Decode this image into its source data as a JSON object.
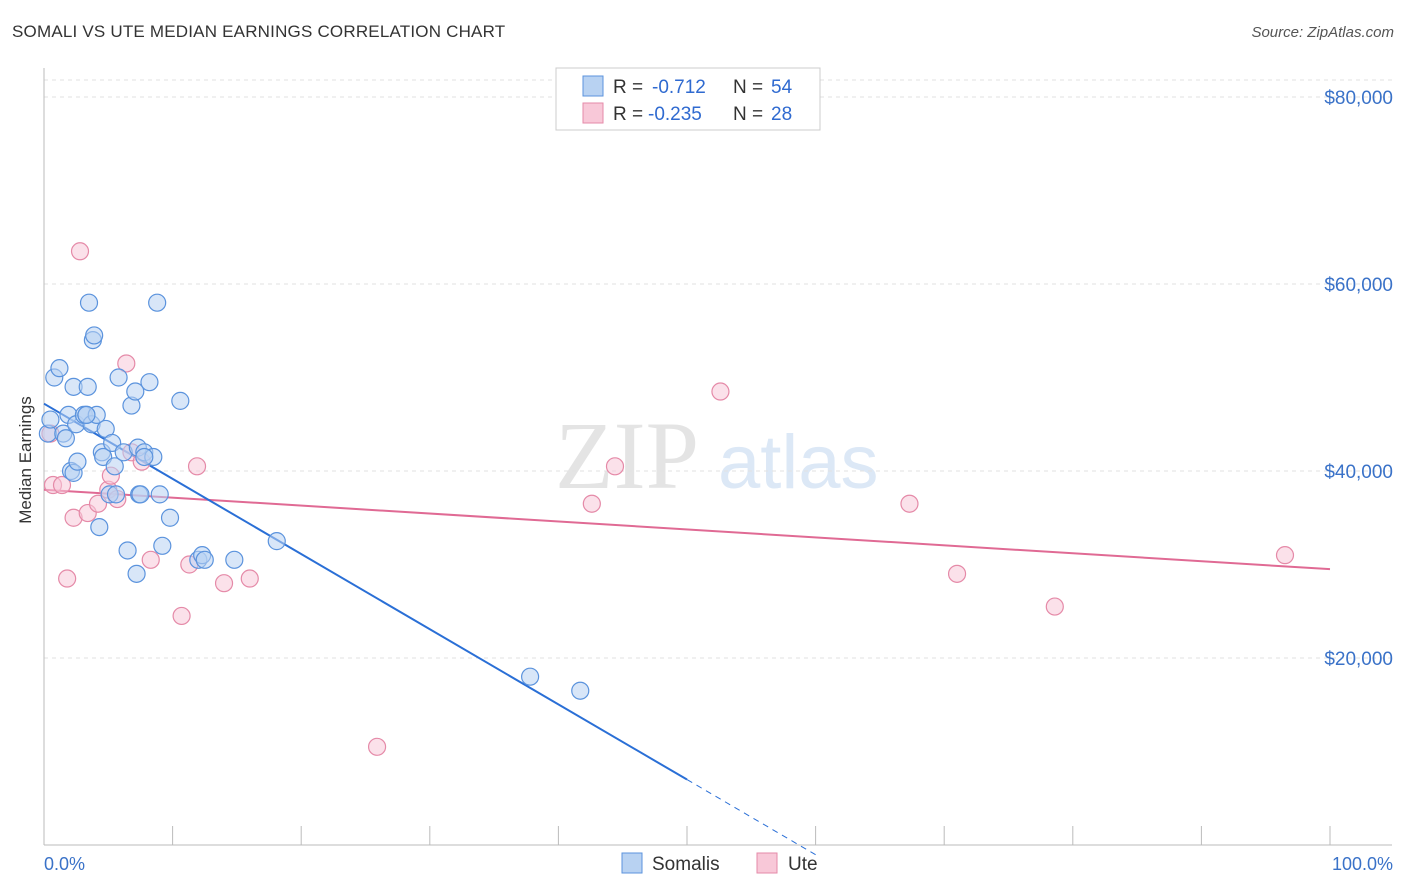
{
  "header": {
    "title": "SOMALI VS UTE MEDIAN EARNINGS CORRELATION CHART",
    "source": "Source: ZipAtlas.com"
  },
  "watermark": {
    "zip": "ZIP",
    "atlas": "atlas"
  },
  "stats": [
    {
      "r_label": "R =",
      "r_value": "-0.712",
      "n_label": "N =",
      "n_value": "54"
    },
    {
      "r_label": "R =",
      "r_value": "-0.235",
      "n_label": "N =",
      "n_value": "28"
    }
  ],
  "colors": {
    "somalis_fill": "#b8d2f2",
    "somalis_stroke": "#5b93dd",
    "somalis_line": "#2a6fd6",
    "ute_fill": "#f8c8d8",
    "ute_stroke": "#e58aa8",
    "ute_line": "#e06a94",
    "tick_text": "#3a72c8"
  },
  "chart_data": {
    "type": "scatter",
    "title": "SOMALI VS UTE MEDIAN EARNINGS CORRELATION CHART",
    "xlabel": "",
    "ylabel": "Median Earnings",
    "xlim": [
      0,
      100
    ],
    "ylim": [
      0,
      80000
    ],
    "x_tick_labels": [
      "0.0%",
      "100.0%"
    ],
    "y_ticks": [
      20000,
      40000,
      60000,
      80000
    ],
    "y_tick_labels": [
      "$20,000",
      "$40,000",
      "$60,000",
      "$80,000"
    ],
    "legend_position": "bottom-center",
    "series": [
      {
        "name": "Somalis",
        "r": -0.712,
        "n": 54,
        "trend": {
          "x0": 0,
          "y0": 47200,
          "x1": 50,
          "y1": 7000,
          "dashed_to_x": 60
        },
        "points": [
          [
            0.3,
            44000
          ],
          [
            0.5,
            45500
          ],
          [
            0.8,
            50000
          ],
          [
            1.2,
            51000
          ],
          [
            1.5,
            44000
          ],
          [
            1.7,
            43500
          ],
          [
            1.9,
            46000
          ],
          [
            2.1,
            40000
          ],
          [
            2.3,
            39800
          ],
          [
            2.5,
            45000
          ],
          [
            2.3,
            49000
          ],
          [
            2.6,
            41000
          ],
          [
            3.1,
            46000
          ],
          [
            3.3,
            46000
          ],
          [
            3.4,
            49000
          ],
          [
            3.5,
            58000
          ],
          [
            3.7,
            45000
          ],
          [
            3.8,
            54000
          ],
          [
            3.9,
            54500
          ],
          [
            4.1,
            46000
          ],
          [
            4.3,
            34000
          ],
          [
            4.5,
            42000
          ],
          [
            4.6,
            41500
          ],
          [
            4.8,
            44500
          ],
          [
            5.1,
            37500
          ],
          [
            5.3,
            43000
          ],
          [
            5.5,
            40500
          ],
          [
            5.6,
            37500
          ],
          [
            5.8,
            50000
          ],
          [
            6.2,
            42000
          ],
          [
            6.5,
            31500
          ],
          [
            6.8,
            47000
          ],
          [
            7.1,
            48500
          ],
          [
            7.2,
            29000
          ],
          [
            7.3,
            42500
          ],
          [
            7.4,
            37500
          ],
          [
            7.5,
            37500
          ],
          [
            7.8,
            42000
          ],
          [
            8.2,
            49500
          ],
          [
            8.5,
            41500
          ],
          [
            8.8,
            58000
          ],
          [
            9.0,
            37500
          ],
          [
            9.2,
            32000
          ],
          [
            9.8,
            35000
          ],
          [
            10.6,
            47500
          ],
          [
            12.0,
            30500
          ],
          [
            12.3,
            31000
          ],
          [
            12.5,
            30500
          ],
          [
            14.8,
            30500
          ],
          [
            18.1,
            32500
          ],
          [
            37.8,
            18000
          ],
          [
            41.7,
            16500
          ],
          [
            7.8,
            41500
          ],
          [
            3.3,
            46000
          ]
        ]
      },
      {
        "name": "Ute",
        "r": -0.235,
        "n": 28,
        "trend": {
          "x0": 0,
          "y0": 38000,
          "x1": 100,
          "y1": 29500
        },
        "points": [
          [
            0.5,
            44000
          ],
          [
            0.7,
            38500
          ],
          [
            1.4,
            38500
          ],
          [
            1.8,
            28500
          ],
          [
            2.3,
            35000
          ],
          [
            2.8,
            63500
          ],
          [
            3.4,
            35500
          ],
          [
            4.2,
            36500
          ],
          [
            5.0,
            38000
          ],
          [
            5.2,
            39500
          ],
          [
            5.7,
            37000
          ],
          [
            6.4,
            51500
          ],
          [
            6.8,
            42000
          ],
          [
            7.6,
            41000
          ],
          [
            8.3,
            30500
          ],
          [
            10.7,
            24500
          ],
          [
            11.3,
            30000
          ],
          [
            11.9,
            40500
          ],
          [
            14.0,
            28000
          ],
          [
            16.0,
            28500
          ],
          [
            25.9,
            10500
          ],
          [
            42.6,
            36500
          ],
          [
            44.4,
            40500
          ],
          [
            52.6,
            48500
          ],
          [
            67.3,
            36500
          ],
          [
            71.0,
            29000
          ],
          [
            78.6,
            25500
          ],
          [
            96.5,
            31000
          ]
        ]
      }
    ],
    "legend": [
      {
        "label": "Somalis"
      },
      {
        "label": "Ute"
      }
    ]
  }
}
